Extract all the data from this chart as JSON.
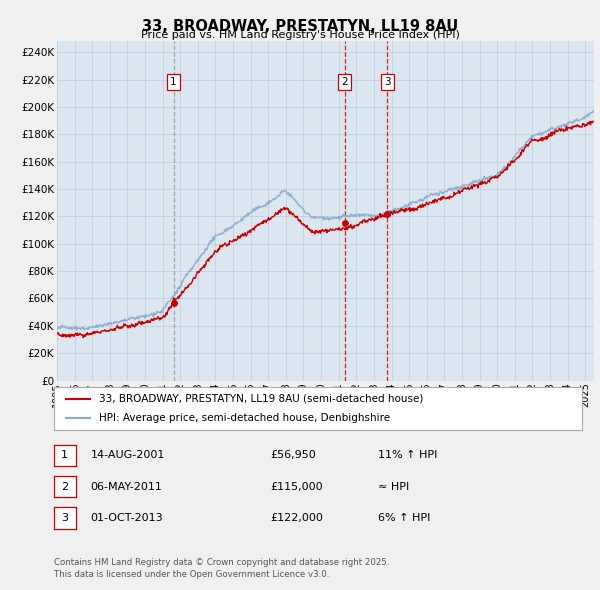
{
  "title": "33, BROADWAY, PRESTATYN, LL19 8AU",
  "subtitle": "Price paid vs. HM Land Registry's House Price Index (HPI)",
  "ylabel_ticks": [
    "£0",
    "£20K",
    "£40K",
    "£60K",
    "£80K",
    "£100K",
    "£120K",
    "£140K",
    "£160K",
    "£180K",
    "£200K",
    "£220K",
    "£240K"
  ],
  "ytick_values": [
    0,
    20000,
    40000,
    60000,
    80000,
    100000,
    120000,
    140000,
    160000,
    180000,
    200000,
    220000,
    240000
  ],
  "ylim": [
    0,
    248000
  ],
  "xlim_start": 1995.0,
  "xlim_end": 2025.5,
  "sale_markers": [
    {
      "date_num": 2001.62,
      "price": 56950,
      "label": "1"
    },
    {
      "date_num": 2011.35,
      "price": 115000,
      "label": "2"
    },
    {
      "date_num": 2013.75,
      "price": 122000,
      "label": "3"
    }
  ],
  "vline1": {
    "x": 2001.62,
    "color": "#999999",
    "style": "--"
  },
  "vline2": {
    "x": 2011.35,
    "color": "#cc0000",
    "style": "--"
  },
  "vline3": {
    "x": 2013.75,
    "color": "#cc0000",
    "style": "--"
  },
  "legend_line1": "33, BROADWAY, PRESTATYN, LL19 8AU (semi-detached house)",
  "legend_line2": "HPI: Average price, semi-detached house, Denbighshire",
  "table_rows": [
    {
      "num": "1",
      "date": "14-AUG-2001",
      "price": "£56,950",
      "rel": "11% ↑ HPI"
    },
    {
      "num": "2",
      "date": "06-MAY-2011",
      "price": "£115,000",
      "rel": "≈ HPI"
    },
    {
      "num": "3",
      "date": "01-OCT-2013",
      "price": "£122,000",
      "rel": "6% ↑ HPI"
    }
  ],
  "footnote": "Contains HM Land Registry data © Crown copyright and database right 2025.\nThis data is licensed under the Open Government Licence v3.0.",
  "line_red": "#cc0000",
  "line_blue": "#88aacc",
  "vline_red": "#cc0000",
  "vline_gray": "#999999",
  "background_color": "#f0f0f0",
  "plot_bg": "#dce6f0"
}
